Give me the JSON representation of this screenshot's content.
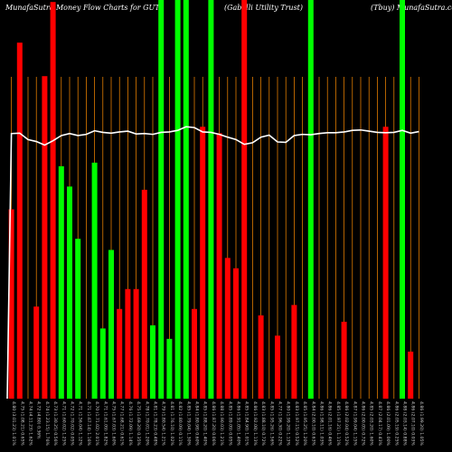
{
  "header": {
    "title": "MunafaSutra  Money Flow  Charts for GUT",
    "company": "(Gabelli  Utility Trust)",
    "site": "(Tbuy) MunafaSutra.com"
  },
  "colors": {
    "background": "#000000",
    "up": "#00ff00",
    "down": "#ff0000",
    "gridline": "#ff8c00",
    "line": "#ffffff"
  },
  "chart_data": {
    "type": "bar",
    "title": "MunafaSutra  Money Flow  Charts for GUT",
    "xlabel": "",
    "ylabel": "",
    "ylim": [
      0,
      100
    ],
    "grid": "vertical",
    "categories": [
      "4.80 (3.01.23) 1.01%",
      "4.75 (1.08.21) 0.65%",
      "4.74 (4.11.23) 1.62%",
      "4.72 (4.80) 0.36%",
      "4.74 (1.23.15) 1.76%",
      "4.73 (1.30.25) 0.56%",
      "4.71 (1.60.02) 1.25%",
      "4.72 (1.70.02) 0.05%",
      "4.71 (1.56.04) 1.12%",
      "4.71 (1.67.14) 1.16%",
      "4.70 (1.71.02) 2.01%",
      "4.71 (1.61.09) 1.82%",
      "4.75 (1.67.03) 1.60%",
      "4.77 (1.68.21) 0.61%",
      "4.76 (1.72.09) 1.14%",
      "4.75 (1.69.20) 0.35%",
      "4.78 (1.70.01) 1.20%",
      "4.81 (1.78.23) 0.48%",
      "4.79 (1.80.54) 1.21%",
      "4.81 (1.76.10) 1.02%",
      "4.82 (1.80.09) 0.11%",
      "4.85 (1.79.04) 1.30%",
      "4.84 (1.80.98) 0.60%",
      "4.85 (1.88.20) 1.40%",
      "4.86 (1.87.20) 0.06%",
      "4.88 (1.90.03) 1.21%",
      "4.85 (1.89.09) 0.05%",
      "4.86 (1.91.05) 1.40%",
      "4.85 (1.84.90) 1.01%",
      "4.86 (1.92.08) 1.13%",
      "4.83 (1.88.10) 0.72%",
      "4.85 (1.95.26) 1.56%",
      "4.77 (1.96.30) 0.22%",
      "4.80 (1.99.20) 1.13%",
      "4.83 (1.97.15) 0.52%",
      "4.85 (1.95.25) 1.20%",
      "4.84 (2.00.10) 0.63%",
      "4.86 (1.98.11) 1.03%",
      "4.86 (2.01.16) 0.46%",
      "4.85 (1.97.21) 1.11%",
      "4.86 (2.02.04) 0.52%",
      "4.87 (1.99.04) 1.15%",
      "4.86 (2.00.05) 0.72%",
      "4.85 (2.03.20) 1.60%",
      "4.87 (2.04.17) 0.43%",
      "4.86 (2.01.09) 1.00%",
      "4.86 (2.05.19) 0.25%",
      "4.88 (2.03.14) 0.88%",
      "4.86 (2.07.10) 0.03%",
      "4.86 (1.99.20) 1.05%"
    ],
    "series": [
      {
        "values": [
          47.5,
          89.3,
          0.0,
          23.1,
          80.9,
          99.5,
          58.3,
          53.2,
          40.1,
          0.0,
          59.2,
          17.6,
          37.3,
          22.5,
          27.5,
          27.5,
          52.4,
          18.4,
          100.0,
          15.0,
          100.0,
          100.0,
          22.5,
          68.2,
          100.0,
          66.6,
          35.3,
          32.7,
          100.0,
          0.0,
          20.9,
          0.0,
          15.8,
          0.0,
          23.5,
          0.0,
          100.0,
          0.0,
          0.0,
          0.0,
          19.3,
          0.0,
          0.0,
          0.0,
          0.0,
          68.2,
          0.0,
          100.0,
          11.8,
          0.0
        ],
        "colors": [
          "down",
          "down",
          "up",
          "down",
          "down",
          "down",
          "up",
          "up",
          "up",
          "down",
          "up",
          "up",
          "up",
          "down",
          "down",
          "down",
          "down",
          "up",
          "up",
          "up",
          "up",
          "up",
          "down",
          "down",
          "up",
          "down",
          "down",
          "down",
          "down",
          "up",
          "down",
          "up",
          "down",
          "up",
          "down",
          "down",
          "up",
          "down",
          "down",
          "up",
          "down",
          "up",
          "up",
          "up",
          "up",
          "down",
          "down",
          "up",
          "down",
          "up"
        ]
      }
    ],
    "line": [
      66.5,
      66.6,
      65.0,
      64.5,
      63.6,
      64.7,
      66.0,
      66.5,
      66.0,
      66.3,
      67.2,
      66.8,
      66.6,
      66.9,
      67.1,
      66.4,
      66.5,
      66.3,
      66.8,
      66.9,
      67.3,
      68.2,
      68.0,
      66.9,
      66.8,
      66.3,
      65.6,
      65.0,
      63.8,
      64.2,
      65.6,
      66.1,
      64.4,
      64.3,
      66.0,
      66.3,
      66.2,
      66.5,
      66.7,
      66.7,
      66.9,
      67.3,
      67.4,
      67.1,
      66.8,
      66.7,
      66.8,
      67.3,
      66.6,
      67.0
    ]
  }
}
